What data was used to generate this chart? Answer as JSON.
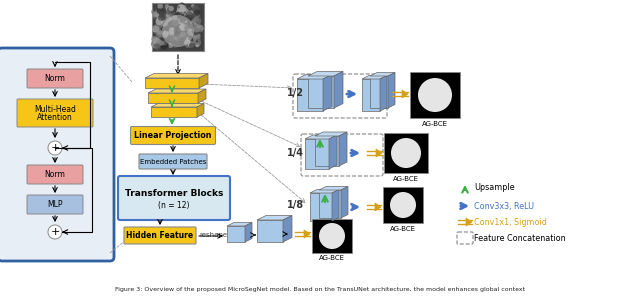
{
  "title": "Figure 3: Overview of the proposed MicroSegNet model. Based on the TransUNet architecture, the model enhances global context",
  "colors": {
    "gold_face": "#F5C518",
    "gold_top": "#FADA6E",
    "gold_side": "#C8A020",
    "blue_face": "#A8C8E8",
    "blue_top": "#C0D8F0",
    "blue_side": "#7090C0",
    "green_arrow": "#3CB043",
    "blue_arrow": "#4472C4",
    "gold_arrow": "#D4A017",
    "norm_box": "#E8A0A0",
    "mlp_box": "#A8C0E0",
    "mha_box": "#F5C518",
    "outer_blue": "#3060A0",
    "transformer_bg": "#E8EEF5",
    "tb_bg": "#D8E8F0",
    "tb_border": "#4472C4",
    "ep_bg": "#A8C8E8",
    "lp_bg": "#F5C518",
    "hf_bg": "#F5C518",
    "gray": "#888888",
    "black": "#000000",
    "white": "#FFFFFF"
  },
  "legend": {
    "upsample": "Upsample",
    "conv3x3": "Conv3x3, ReLU",
    "conv1x1": "Conv1x1, Sigmoid",
    "feat_concat": "Feature Concatenation"
  },
  "decoder_labels": [
    "1/2",
    "1/4",
    "1/8"
  ],
  "agbce_label": "AG-BCE"
}
